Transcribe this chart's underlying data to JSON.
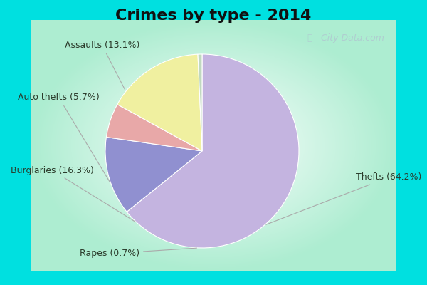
{
  "title": "Crimes by type - 2014",
  "slices": [
    {
      "label": "Thefts",
      "pct": 64.2,
      "color": "#c4b4e0"
    },
    {
      "label": "Assaults",
      "pct": 13.1,
      "color": "#9090d0"
    },
    {
      "label": "Auto thefts",
      "pct": 5.7,
      "color": "#e8a8a8"
    },
    {
      "label": "Burglaries",
      "pct": 16.3,
      "color": "#f0f0a0"
    },
    {
      "label": "Rapes",
      "pct": 0.7,
      "color": "#c0d8c0"
    }
  ],
  "border_color": "#00e0e0",
  "border_width": 12,
  "bg_center": "#ffffff",
  "bg_edge": "#a8e8d0",
  "title_fontsize": 16,
  "label_fontsize": 9,
  "watermark": " City-Data.com",
  "startangle": 90
}
